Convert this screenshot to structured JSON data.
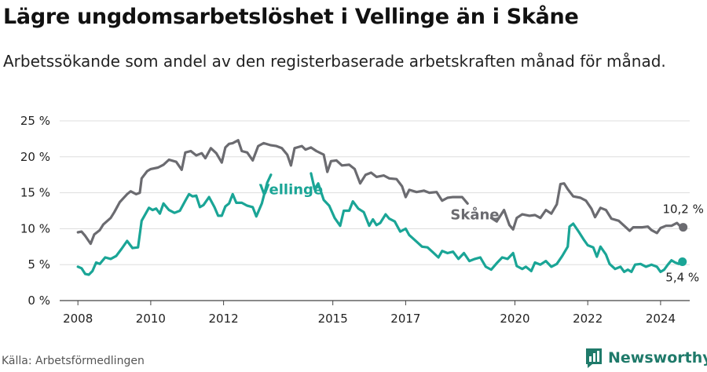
{
  "title": "Lägre ungdomsarbetslöshet i Vellinge än i Skåne",
  "subtitle": "Arbetssökande som andel av den registerbaserade arbetskraften månad för månad.",
  "source": "Källa: Arbetsförmedlingen",
  "brand": "Newsworthy",
  "colors": {
    "skane": "#6b6b70",
    "vellinge": "#1aa596",
    "grid": "#dddddd",
    "axis": "#444444"
  },
  "chart_data": {
    "type": "line",
    "title": "Lägre ungdomsarbetslöshet i Vellinge än i Skåne",
    "ylabel": "",
    "xlabel": "",
    "ylim": [
      0,
      25
    ],
    "xlim": [
      2007.5,
      2024.8
    ],
    "y_ticks": [
      0,
      5,
      10,
      15,
      20,
      25
    ],
    "y_tick_labels": [
      "0 %",
      "5 %",
      "10 %",
      "15 %",
      "20 %",
      "25 %"
    ],
    "x_ticks": [
      2008,
      2010,
      2012,
      2015,
      2017,
      2020,
      2022,
      2024
    ],
    "x_tick_labels": [
      "2008",
      "2010",
      "2012",
      "2015",
      "2017",
      "2020",
      "2022",
      "2024"
    ],
    "series": [
      {
        "name": "Skåne",
        "label": "Skåne",
        "end_label": "10,2 %",
        "points": [
          [
            2008.0,
            9.5
          ],
          [
            2008.1,
            9.6
          ],
          [
            2008.2,
            9.0
          ],
          [
            2008.35,
            7.9
          ],
          [
            2008.45,
            9.2
          ],
          [
            2008.6,
            9.8
          ],
          [
            2008.7,
            10.6
          ],
          [
            2008.9,
            11.5
          ],
          [
            2009.0,
            12.3
          ],
          [
            2009.15,
            13.7
          ],
          [
            2009.35,
            14.8
          ],
          [
            2009.45,
            15.2
          ],
          [
            2009.6,
            14.8
          ],
          [
            2009.7,
            15.0
          ],
          [
            2009.75,
            17.0
          ],
          [
            2009.9,
            18.0
          ],
          [
            2010.0,
            18.3
          ],
          [
            2010.2,
            18.5
          ],
          [
            2010.35,
            18.9
          ],
          [
            2010.5,
            19.6
          ],
          [
            2010.7,
            19.3
          ],
          [
            2010.85,
            18.2
          ],
          [
            2010.95,
            20.6
          ],
          [
            2011.1,
            20.8
          ],
          [
            2011.25,
            20.2
          ],
          [
            2011.4,
            20.5
          ],
          [
            2011.5,
            19.8
          ],
          [
            2011.65,
            21.2
          ],
          [
            2011.8,
            20.5
          ],
          [
            2011.95,
            19.2
          ],
          [
            2012.05,
            21.3
          ],
          [
            2012.15,
            21.8
          ],
          [
            2012.25,
            21.9
          ],
          [
            2012.4,
            22.3
          ],
          [
            2012.5,
            20.8
          ],
          [
            2012.65,
            20.6
          ],
          [
            2012.8,
            19.5
          ],
          [
            2012.95,
            21.5
          ],
          [
            2013.1,
            21.9
          ],
          [
            2013.3,
            21.6
          ],
          [
            2013.45,
            21.5
          ],
          [
            2013.6,
            21.2
          ],
          [
            2013.75,
            20.3
          ],
          [
            2013.85,
            18.8
          ],
          [
            2013.95,
            21.2
          ],
          [
            2014.15,
            21.5
          ],
          [
            2014.25,
            21.0
          ],
          [
            2014.4,
            21.3
          ],
          [
            2014.55,
            20.8
          ],
          [
            2014.75,
            20.3
          ],
          [
            2014.85,
            17.9
          ],
          [
            2014.95,
            19.4
          ],
          [
            2015.1,
            19.5
          ],
          [
            2015.25,
            18.8
          ],
          [
            2015.45,
            18.9
          ],
          [
            2015.6,
            18.3
          ],
          [
            2015.75,
            16.3
          ],
          [
            2015.9,
            17.5
          ],
          [
            2016.05,
            17.8
          ],
          [
            2016.2,
            17.2
          ],
          [
            2016.4,
            17.4
          ],
          [
            2016.55,
            17.0
          ],
          [
            2016.75,
            16.9
          ],
          [
            2016.9,
            15.9
          ],
          [
            2017.0,
            14.4
          ],
          [
            2017.1,
            15.4
          ],
          [
            2017.3,
            15.1
          ],
          [
            2017.5,
            15.3
          ],
          [
            2017.65,
            15.0
          ],
          [
            2017.85,
            15.1
          ],
          [
            2018.0,
            13.9
          ],
          [
            2018.15,
            14.3
          ],
          [
            2018.3,
            14.4
          ],
          [
            2018.55,
            14.4
          ],
          [
            2018.7,
            13.5
          ],
          [
            2018.85,
            null
          ],
          [
            2019.2,
            null
          ],
          [
            2019.35,
            11.5
          ],
          [
            2019.5,
            11.0
          ],
          [
            2019.7,
            12.6
          ],
          [
            2019.85,
            10.5
          ],
          [
            2019.95,
            9.9
          ],
          [
            2020.05,
            11.5
          ],
          [
            2020.2,
            12.0
          ],
          [
            2020.4,
            11.8
          ],
          [
            2020.55,
            11.9
          ],
          [
            2020.7,
            11.5
          ],
          [
            2020.85,
            12.6
          ],
          [
            2021.0,
            12.1
          ],
          [
            2021.15,
            13.4
          ],
          [
            2021.25,
            16.2
          ],
          [
            2021.35,
            16.3
          ],
          [
            2021.45,
            15.5
          ],
          [
            2021.6,
            14.5
          ],
          [
            2021.8,
            14.3
          ],
          [
            2021.95,
            13.9
          ],
          [
            2022.1,
            12.8
          ],
          [
            2022.2,
            11.6
          ],
          [
            2022.35,
            12.9
          ],
          [
            2022.5,
            12.6
          ],
          [
            2022.65,
            11.4
          ],
          [
            2022.85,
            11.1
          ],
          [
            2023.0,
            10.4
          ],
          [
            2023.15,
            9.7
          ],
          [
            2023.25,
            10.2
          ],
          [
            2023.5,
            10.2
          ],
          [
            2023.65,
            10.3
          ],
          [
            2023.75,
            9.8
          ],
          [
            2023.9,
            9.4
          ],
          [
            2024.0,
            10.1
          ],
          [
            2024.15,
            10.4
          ],
          [
            2024.3,
            10.4
          ],
          [
            2024.45,
            10.8
          ],
          [
            2024.55,
            10.3
          ],
          [
            2024.62,
            10.2
          ]
        ]
      },
      {
        "name": "Vellinge",
        "label": "Vellinge",
        "end_label": "5,4 %",
        "points": [
          [
            2008.0,
            4.7
          ],
          [
            2008.1,
            4.5
          ],
          [
            2008.2,
            3.7
          ],
          [
            2008.3,
            3.6
          ],
          [
            2008.4,
            4.1
          ],
          [
            2008.5,
            5.3
          ],
          [
            2008.6,
            5.1
          ],
          [
            2008.75,
            6.0
          ],
          [
            2008.9,
            5.8
          ],
          [
            2009.05,
            6.2
          ],
          [
            2009.2,
            7.2
          ],
          [
            2009.35,
            8.3
          ],
          [
            2009.5,
            7.3
          ],
          [
            2009.65,
            7.4
          ],
          [
            2009.75,
            11.1
          ],
          [
            2009.95,
            12.9
          ],
          [
            2010.05,
            12.6
          ],
          [
            2010.15,
            12.8
          ],
          [
            2010.25,
            12.1
          ],
          [
            2010.35,
            13.5
          ],
          [
            2010.5,
            12.6
          ],
          [
            2010.65,
            12.2
          ],
          [
            2010.8,
            12.5
          ],
          [
            2010.95,
            13.9
          ],
          [
            2011.05,
            14.8
          ],
          [
            2011.15,
            14.5
          ],
          [
            2011.25,
            14.6
          ],
          [
            2011.35,
            13.0
          ],
          [
            2011.45,
            13.3
          ],
          [
            2011.6,
            14.4
          ],
          [
            2011.75,
            13.0
          ],
          [
            2011.85,
            11.8
          ],
          [
            2011.95,
            11.8
          ],
          [
            2012.05,
            13.1
          ],
          [
            2012.15,
            13.5
          ],
          [
            2012.25,
            14.8
          ],
          [
            2012.35,
            13.6
          ],
          [
            2012.5,
            13.6
          ],
          [
            2012.65,
            13.2
          ],
          [
            2012.8,
            13.0
          ],
          [
            2012.9,
            11.7
          ],
          [
            2013.05,
            13.5
          ],
          [
            2013.2,
            16.4
          ],
          [
            2013.3,
            17.5
          ],
          [
            2013.4,
            null
          ],
          [
            2014.3,
            null
          ],
          [
            2014.4,
            17.7
          ],
          [
            2014.5,
            15.5
          ],
          [
            2014.6,
            16.3
          ],
          [
            2014.75,
            14.0
          ],
          [
            2014.9,
            13.2
          ],
          [
            2015.05,
            11.5
          ],
          [
            2015.2,
            10.4
          ],
          [
            2015.3,
            12.5
          ],
          [
            2015.45,
            12.5
          ],
          [
            2015.55,
            13.8
          ],
          [
            2015.7,
            12.8
          ],
          [
            2015.85,
            12.3
          ],
          [
            2016.0,
            10.4
          ],
          [
            2016.1,
            11.3
          ],
          [
            2016.2,
            10.5
          ],
          [
            2016.3,
            10.8
          ],
          [
            2016.45,
            12.0
          ],
          [
            2016.55,
            11.4
          ],
          [
            2016.7,
            11.0
          ],
          [
            2016.85,
            9.6
          ],
          [
            2017.0,
            10.0
          ],
          [
            2017.1,
            9.1
          ],
          [
            2017.3,
            8.2
          ],
          [
            2017.45,
            7.5
          ],
          [
            2017.6,
            7.4
          ],
          [
            2017.75,
            6.7
          ],
          [
            2017.9,
            6.0
          ],
          [
            2018.0,
            6.9
          ],
          [
            2018.15,
            6.6
          ],
          [
            2018.3,
            6.8
          ],
          [
            2018.45,
            5.8
          ],
          [
            2018.6,
            6.6
          ],
          [
            2018.75,
            5.5
          ],
          [
            2018.9,
            5.8
          ],
          [
            2019.05,
            6.0
          ],
          [
            2019.2,
            4.7
          ],
          [
            2019.35,
            4.3
          ],
          [
            2019.5,
            5.2
          ],
          [
            2019.65,
            6.0
          ],
          [
            2019.8,
            5.8
          ],
          [
            2019.95,
            6.6
          ],
          [
            2020.05,
            4.8
          ],
          [
            2020.2,
            4.4
          ],
          [
            2020.3,
            4.7
          ],
          [
            2020.45,
            4.1
          ],
          [
            2020.55,
            5.3
          ],
          [
            2020.7,
            5.0
          ],
          [
            2020.85,
            5.5
          ],
          [
            2021.0,
            4.7
          ],
          [
            2021.15,
            5.1
          ],
          [
            2021.3,
            6.2
          ],
          [
            2021.45,
            7.5
          ],
          [
            2021.5,
            10.3
          ],
          [
            2021.6,
            10.7
          ],
          [
            2021.75,
            9.6
          ],
          [
            2021.9,
            8.4
          ],
          [
            2022.0,
            7.7
          ],
          [
            2022.15,
            7.4
          ],
          [
            2022.25,
            6.1
          ],
          [
            2022.35,
            7.5
          ],
          [
            2022.5,
            6.4
          ],
          [
            2022.6,
            5.1
          ],
          [
            2022.75,
            4.4
          ],
          [
            2022.9,
            4.7
          ],
          [
            2023.0,
            4.0
          ],
          [
            2023.1,
            4.3
          ],
          [
            2023.2,
            4.0
          ],
          [
            2023.3,
            5.0
          ],
          [
            2023.45,
            5.1
          ],
          [
            2023.6,
            4.7
          ],
          [
            2023.75,
            5.0
          ],
          [
            2023.9,
            4.7
          ],
          [
            2024.0,
            4.0
          ],
          [
            2024.1,
            4.3
          ],
          [
            2024.2,
            5.0
          ],
          [
            2024.3,
            5.6
          ],
          [
            2024.4,
            5.3
          ],
          [
            2024.5,
            5.1
          ],
          [
            2024.6,
            5.4
          ]
        ]
      }
    ]
  }
}
